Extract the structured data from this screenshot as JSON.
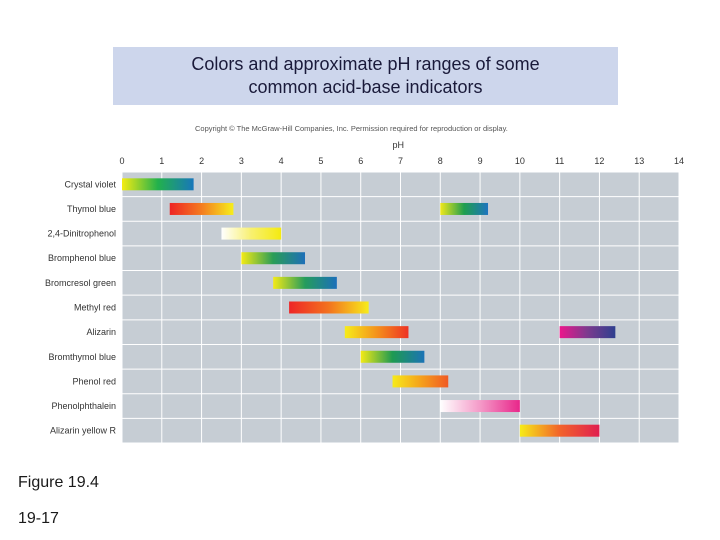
{
  "header": {
    "title_line1": "Colors and approximate pH ranges of some",
    "title_line2": "common acid-base indicators"
  },
  "copyright": "Copyright © The McGraw-Hill Companies, Inc. Permission required for reproduction or display.",
  "figure_label": "Figure 19.4",
  "page_number": "19-17",
  "chart_data": {
    "type": "range-bar",
    "title": "Colors and approximate pH ranges of some common acid-base indicators",
    "xlabel": "pH",
    "xlim": [
      0,
      14
    ],
    "ticks": [
      "0",
      "1",
      "2",
      "3",
      "4",
      "5",
      "6",
      "7",
      "8",
      "9",
      "10",
      "11",
      "12",
      "13",
      "14"
    ],
    "grid": true,
    "indicators": [
      {
        "name": "Crystal violet",
        "ranges": [
          {
            "start": 0.0,
            "end": 1.8,
            "colors": [
              "#f4ec12",
              "#22b14c",
              "#1877bb"
            ]
          }
        ]
      },
      {
        "name": "Thymol blue",
        "ranges": [
          {
            "start": 1.2,
            "end": 2.8,
            "colors": [
              "#ee2424",
              "#f47c20",
              "#f6ee1c"
            ]
          },
          {
            "start": 8.0,
            "end": 9.2,
            "colors": [
              "#f0e81a",
              "#1f9e4f",
              "#1e74bf"
            ]
          }
        ]
      },
      {
        "name": "2,4-Dinitrophenol",
        "ranges": [
          {
            "start": 2.5,
            "end": 4.0,
            "colors": [
              "#ffffff",
              "#f8f070",
              "#f4ea10"
            ]
          }
        ]
      },
      {
        "name": "Bromphenol blue",
        "ranges": [
          {
            "start": 3.0,
            "end": 4.6,
            "colors": [
              "#f3ea16",
              "#2a9d57",
              "#1d6fb8"
            ]
          }
        ]
      },
      {
        "name": "Bromcresol green",
        "ranges": [
          {
            "start": 3.8,
            "end": 5.4,
            "colors": [
              "#f3ea16",
              "#259c5c",
              "#1b6fba"
            ]
          }
        ]
      },
      {
        "name": "Methyl red",
        "ranges": [
          {
            "start": 4.2,
            "end": 6.2,
            "colors": [
              "#ee2526",
              "#f3731f",
              "#f7ec1b"
            ]
          }
        ]
      },
      {
        "name": "Alizarin",
        "ranges": [
          {
            "start": 5.6,
            "end": 7.2,
            "colors": [
              "#f6ec1a",
              "#f4921c",
              "#ee3224"
            ]
          },
          {
            "start": 11.0,
            "end": 12.4,
            "colors": [
              "#ec168c",
              "#7c3a8e",
              "#2e3f8f"
            ]
          }
        ]
      },
      {
        "name": "Bromthymol blue",
        "ranges": [
          {
            "start": 6.0,
            "end": 7.6,
            "colors": [
              "#f3ea16",
              "#1e9a52",
              "#1b73b6"
            ]
          }
        ]
      },
      {
        "name": "Phenol red",
        "ranges": [
          {
            "start": 6.8,
            "end": 8.2,
            "colors": [
              "#f6ea1a",
              "#f5a21c",
              "#f05a24"
            ]
          }
        ]
      },
      {
        "name": "Phenolphthalein",
        "ranges": [
          {
            "start": 8.0,
            "end": 10.0,
            "colors": [
              "#ffffff",
              "#f49ac8",
              "#e8268a"
            ]
          }
        ]
      },
      {
        "name": "Alizarin yellow R",
        "ranges": [
          {
            "start": 10.0,
            "end": 12.0,
            "colors": [
              "#f6ec18",
              "#f2632a",
              "#e01e50"
            ]
          }
        ]
      }
    ]
  }
}
